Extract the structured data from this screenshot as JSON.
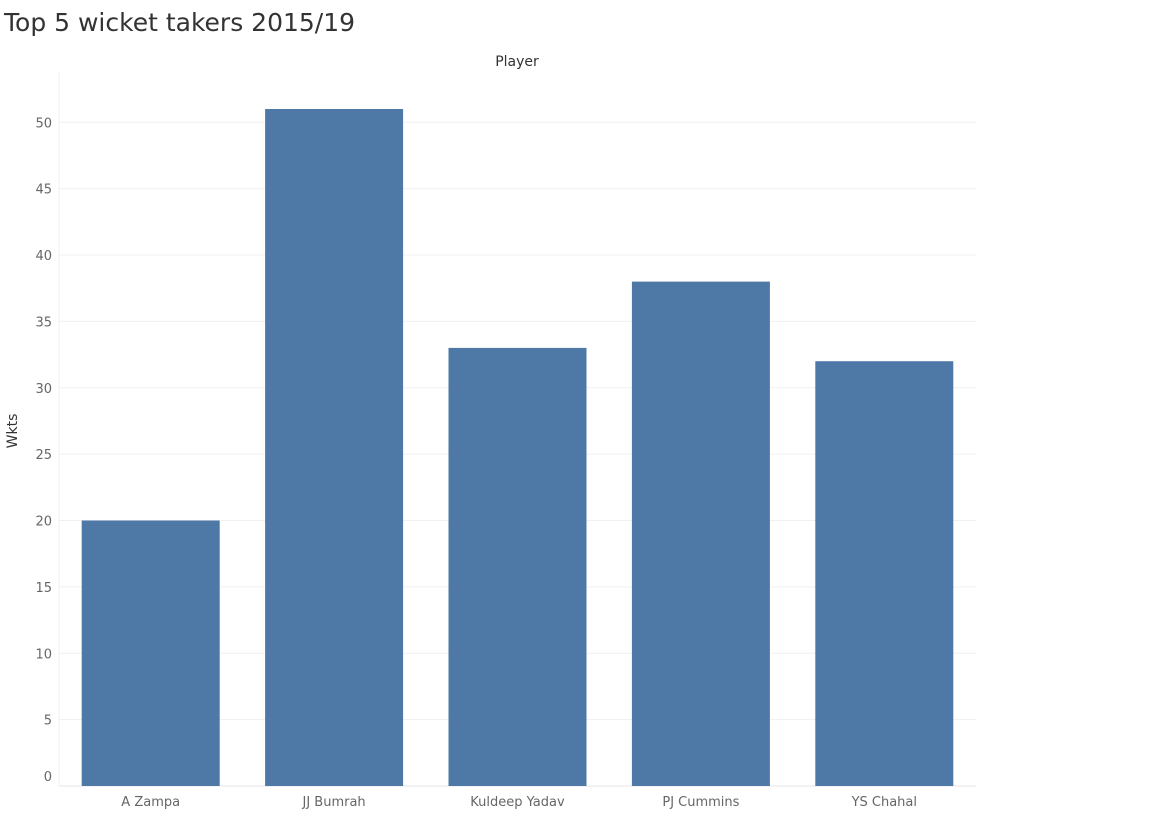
{
  "chart_data": {
    "type": "bar",
    "title": "Top 5 wicket takers 2015/19",
    "xlabel": "Player",
    "ylabel": "Wkts",
    "categories": [
      "A Zampa",
      "JJ Bumrah",
      "Kuldeep Yadav",
      "PJ Cummins",
      "YS Chahal"
    ],
    "values": [
      20,
      51,
      33,
      38,
      32
    ],
    "ylim": [
      0,
      51
    ],
    "yticks": [
      0,
      5,
      10,
      15,
      20,
      25,
      30,
      35,
      40,
      45,
      50
    ],
    "bar_color": "#4e79a7",
    "grid": true,
    "legend": "none"
  }
}
